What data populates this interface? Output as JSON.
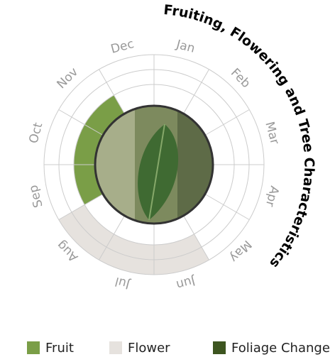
{
  "chart_data": {
    "type": "radial-calendar",
    "title": "Fruiting, Flowering and Tree Characteristics",
    "categories": [
      "Jan",
      "Feb",
      "Mar",
      "Apr",
      "May",
      "Jun",
      "Jul",
      "Aug",
      "Sep",
      "Oct",
      "Nov",
      "Dec"
    ],
    "series": [
      {
        "name": "Fruit",
        "color": "#7a9e47",
        "values": [
          0,
          0,
          0,
          0,
          0,
          0,
          0,
          0,
          1,
          1,
          1,
          0
        ]
      },
      {
        "name": "Flower",
        "color": "#e6e2de",
        "values": [
          0,
          0,
          0,
          0,
          0,
          1,
          1,
          1,
          0,
          0,
          0,
          0
        ]
      },
      {
        "name": "Foliage Change",
        "color": "#3d5520",
        "values": [
          0,
          0,
          0,
          0,
          0,
          0,
          0,
          0,
          0,
          0,
          0,
          0
        ]
      }
    ]
  }
}
